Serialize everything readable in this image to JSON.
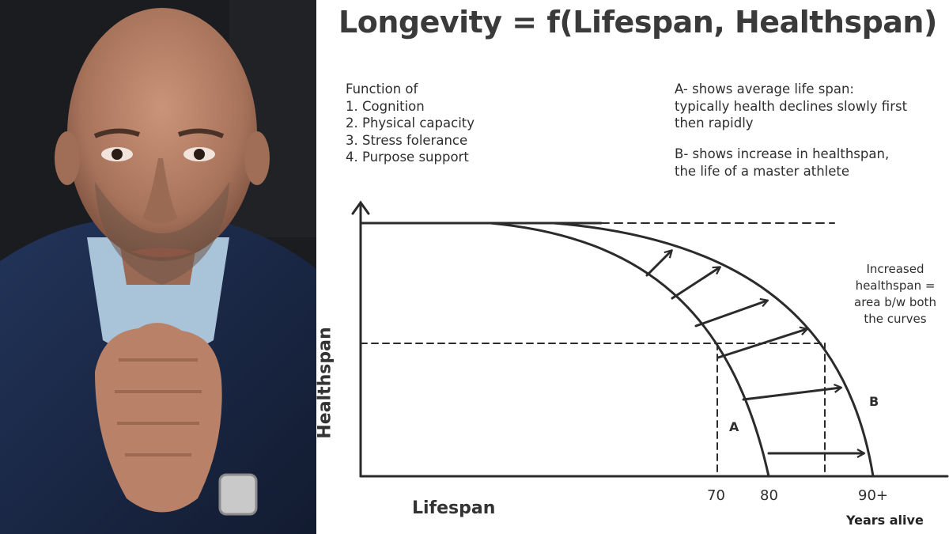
{
  "title": "Longevity = f(Lifespan, Healthspan)",
  "functions": {
    "heading": "Function of",
    "items": [
      "1. Cognition",
      "2. Physical capacity",
      "3. Stress folerance",
      "4. Purpose support"
    ]
  },
  "note_a": {
    "lines": [
      "A- shows average life span:",
      "typically health declines slowly first",
      "then rapidly"
    ]
  },
  "note_b": {
    "lines": [
      "B- shows increase in healthspan,",
      "the life of a master athlete"
    ]
  },
  "area_note": {
    "lines": [
      "Increased",
      "healthspan =",
      "area b/w both",
      "the curves"
    ]
  },
  "axes": {
    "y_label": "Healthspan",
    "x_label": "Lifespan",
    "x_unit": "Years alive",
    "ticks": [
      "70",
      "80",
      "90+"
    ]
  },
  "curves": {
    "a_label": "A",
    "b_label": "B"
  },
  "colors": {
    "ink": "#2b2b2b",
    "photo_background": "#15171b",
    "suit": "#1d2a44",
    "shirt": "#a9c4d8",
    "skin": "#b07f66"
  }
}
